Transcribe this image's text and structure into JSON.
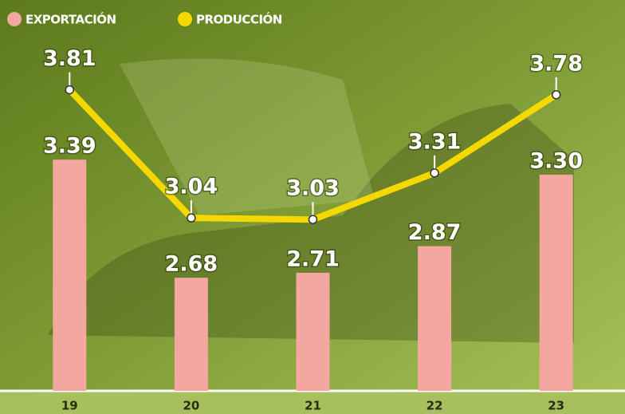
{
  "chart_data": {
    "type": "bar",
    "categories": [
      "19",
      "20",
      "21",
      "22",
      "23"
    ],
    "series": [
      {
        "name": "EXPORTACIÓN",
        "type": "bar",
        "color": "#f4a7a0",
        "values": [
          3.39,
          2.68,
          2.71,
          2.87,
          3.3
        ],
        "value_labels": [
          "3.39",
          "2.68",
          "2.71",
          "2.87",
          "3.30"
        ]
      },
      {
        "name": "PRODUCCIÓN",
        "type": "line",
        "color": "#f5d800",
        "values": [
          3.81,
          3.04,
          3.03,
          3.31,
          3.78
        ],
        "value_labels": [
          "3.81",
          "3.04",
          "3.03",
          "3.31",
          "3.78"
        ]
      }
    ],
    "ylim": [
      2.0,
      4.35
    ]
  }
}
